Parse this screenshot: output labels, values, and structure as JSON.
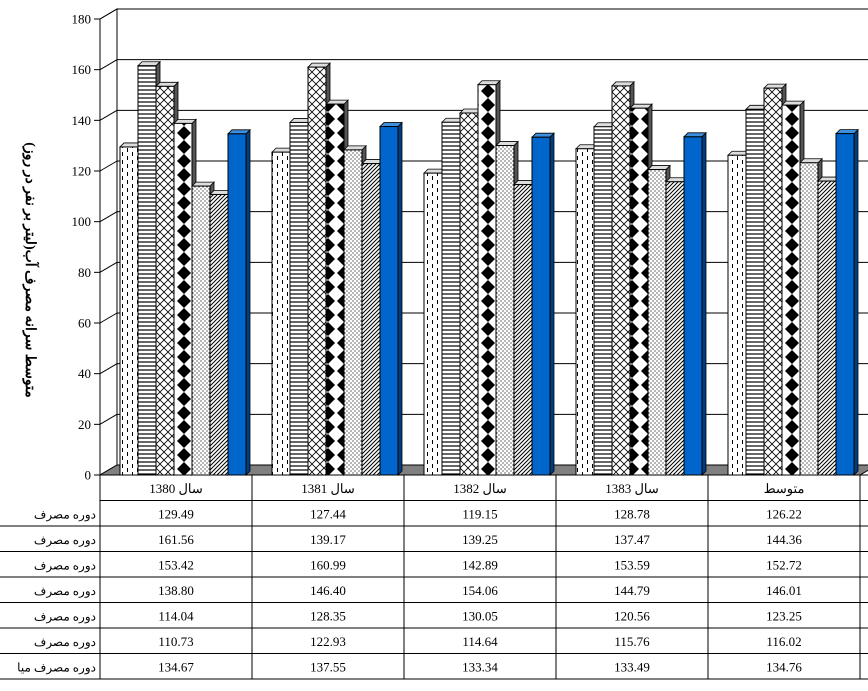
{
  "chart_data": {
    "type": "bar",
    "title": "",
    "xlabel": "",
    "ylabel": "متوسط سرانه مصرف آب(لیتر بر نفر در روز)",
    "ylim": [
      0,
      180
    ],
    "yticks": [
      0,
      20,
      40,
      60,
      80,
      100,
      120,
      140,
      160,
      180
    ],
    "grid": true,
    "legend": "data-table",
    "categories": [
      "سال 1380",
      "سال 1381",
      "سال 1382",
      "سال 1383",
      "متوسط"
    ],
    "series": [
      {
        "name": "دوره مصرف",
        "pattern": "dashes",
        "values": [
          129.49,
          127.44,
          119.15,
          128.78,
          126.22
        ]
      },
      {
        "name": "دوره مصرف",
        "pattern": "hlines",
        "values": [
          161.56,
          139.17,
          139.25,
          137.47,
          144.36
        ]
      },
      {
        "name": "دوره مصرف",
        "pattern": "crosshatch",
        "values": [
          153.42,
          160.99,
          142.89,
          153.59,
          152.72
        ]
      },
      {
        "name": "دوره مصرف",
        "pattern": "diamonds",
        "values": [
          138.8,
          146.4,
          154.06,
          144.79,
          146.01
        ]
      },
      {
        "name": "دوره مصرف",
        "pattern": "dots",
        "values": [
          114.04,
          128.35,
          130.05,
          120.56,
          123.25
        ]
      },
      {
        "name": "دوره مصرف",
        "pattern": "diagonal",
        "values": [
          110.73,
          122.93,
          114.64,
          115.76,
          116.02
        ]
      },
      {
        "name": "دوره مصرف میا",
        "pattern": "solid-blue",
        "values": [
          134.67,
          137.55,
          133.34,
          133.49,
          134.76
        ]
      }
    ],
    "table_values": [
      [
        "129.49",
        "127.44",
        "119.15",
        "128.78",
        "126.22"
      ],
      [
        "161.56",
        "139.17",
        "139.25",
        "137.47",
        "144.36"
      ],
      [
        "153.42",
        "160.99",
        "142.89",
        "153.59",
        "152.72"
      ],
      [
        "138.80",
        "146.40",
        "154.06",
        "144.79",
        "146.01"
      ],
      [
        "114.04",
        "128.35",
        "130.05",
        "120.56",
        "123.25"
      ],
      [
        "110.73",
        "122.93",
        "114.64",
        "115.76",
        "116.02"
      ],
      [
        "134.67",
        "137.55",
        "133.34",
        "133.49",
        "134.76"
      ]
    ],
    "colors": {
      "bar_fill": "#ffffff",
      "bar_stroke": "#000000",
      "accent_bar": "#0066cc",
      "floor": "#808080"
    }
  }
}
